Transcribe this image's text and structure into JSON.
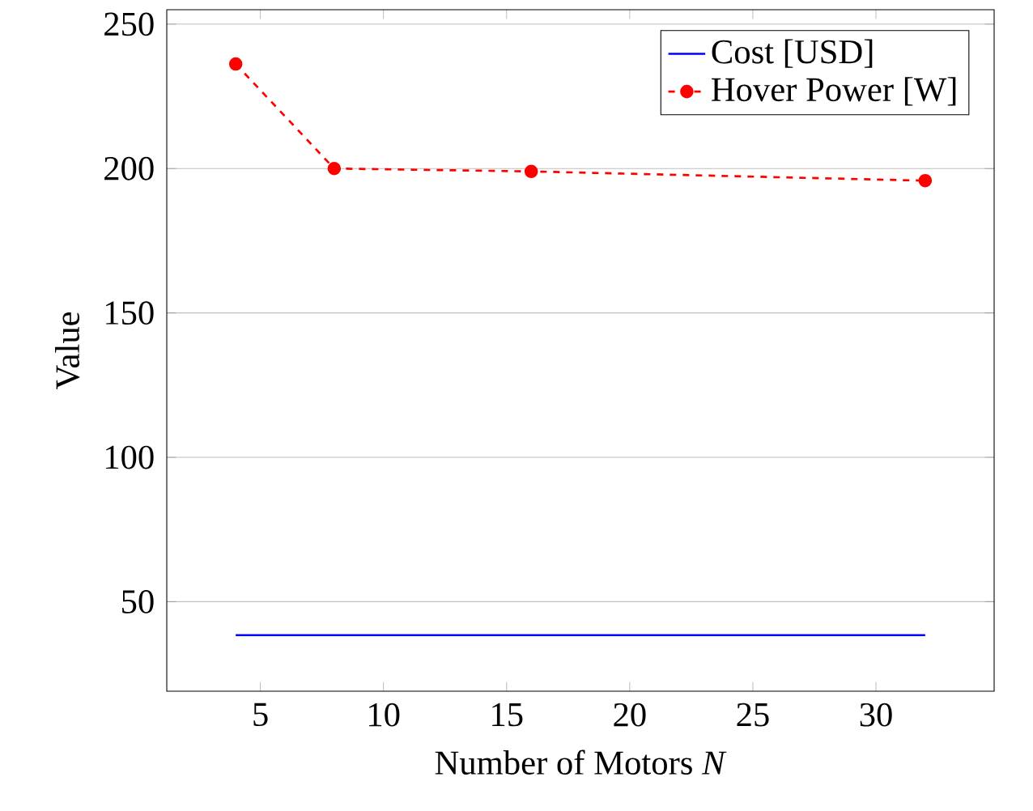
{
  "chart_data": {
    "type": "line",
    "xlabel": "Number of Motors *N*",
    "ylabel": "Value",
    "x": [
      4,
      8,
      16,
      32
    ],
    "series": [
      {
        "name": "Cost [USD]",
        "color": "#0000ff",
        "values": [
          38.4,
          38.4,
          38.4,
          38.4
        ],
        "marker": "none",
        "line_style": "solid"
      },
      {
        "name": "Hover Power [W]",
        "color": "#ff0000",
        "values": [
          236.2,
          200,
          199,
          195.8
        ],
        "marker": "circle",
        "line_style": "dashed"
      }
    ],
    "xlim": [
      1.2,
      34.8
    ],
    "ylim": [
      19,
      255
    ],
    "xticks": [
      5,
      10,
      15,
      20,
      25,
      30
    ],
    "yticks": [
      50,
      100,
      150,
      200,
      250
    ],
    "grid": "y",
    "legend": "top right"
  }
}
